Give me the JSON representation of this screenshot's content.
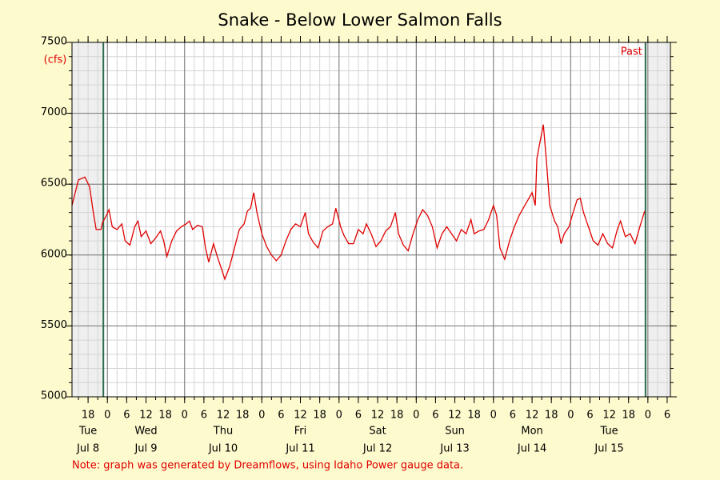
{
  "chart_data": {
    "type": "line",
    "title": "Snake - Below Lower Salmon Falls",
    "y_label": "(cfs)",
    "past_label": "Past",
    "note": "Note: graph was generated by Dreamflows, using Idaho Power gauge data.",
    "past_range": [
      22.75,
      191.25
    ],
    "xlim": [
      13,
      199
    ],
    "ylim": [
      5000,
      7500
    ],
    "yticks": [
      5000,
      5500,
      6000,
      6500,
      7000,
      7500
    ],
    "xticks": [
      18,
      {
        "value": 24,
        "label": "0"
      },
      {
        "value": 30,
        "label": "6"
      },
      {
        "value": 36,
        "label": "12"
      },
      {
        "value": 42,
        "label": "18"
      },
      {
        "value": 48,
        "label": "0"
      },
      {
        "value": 54,
        "label": "6"
      },
      {
        "value": 60,
        "label": "12"
      },
      {
        "value": 66,
        "label": "18"
      },
      {
        "value": 72,
        "label": "0"
      },
      {
        "value": 78,
        "label": "6"
      },
      {
        "value": 84,
        "label": "12"
      },
      {
        "value": 90,
        "label": "18"
      },
      {
        "value": 96,
        "label": "0"
      },
      {
        "value": 102,
        "label": "6"
      },
      {
        "value": 108,
        "label": "12"
      },
      {
        "value": 114,
        "label": "18"
      },
      {
        "value": 120,
        "label": "0"
      },
      {
        "value": 126,
        "label": "6"
      },
      {
        "value": 132,
        "label": "12"
      },
      {
        "value": 138,
        "label": "18"
      },
      {
        "value": 144,
        "label": "0"
      },
      {
        "value": 150,
        "label": "6"
      },
      {
        "value": 156,
        "label": "12"
      },
      {
        "value": 162,
        "label": "18"
      },
      {
        "value": 168,
        "label": "0"
      },
      {
        "value": 174,
        "label": "6"
      },
      {
        "value": 180,
        "label": "12"
      },
      {
        "value": 186,
        "label": "18"
      },
      {
        "value": 192,
        "label": "0"
      },
      {
        "value": 198,
        "label": "6"
      }
    ],
    "day_labels": [
      {
        "value": 18,
        "weekday": "Tue",
        "date": "Jul 8"
      },
      {
        "value": 36,
        "weekday": "Wed",
        "date": "Jul 9"
      },
      {
        "value": 60,
        "weekday": "Thu",
        "date": "Jul 10"
      },
      {
        "value": 84,
        "weekday": "Fri",
        "date": "Jul 11"
      },
      {
        "value": 108,
        "weekday": "Sat",
        "date": "Jul 12"
      },
      {
        "value": 132,
        "weekday": "Sun",
        "date": "Jul 13"
      },
      {
        "value": 156,
        "weekday": "Mon",
        "date": "Jul 14"
      },
      {
        "value": 180,
        "weekday": "Tue",
        "date": "Jul 15"
      }
    ],
    "day_grid": [
      24,
      48,
      72,
      96,
      120,
      144,
      168,
      192
    ],
    "minor_grid": {
      "x_step": 3,
      "y_step": 100
    },
    "grid": true,
    "series": [
      {
        "name": "Flow",
        "color": "#e00000",
        "x": [
          13,
          15,
          17,
          18.5,
          19.5,
          20.5,
          22,
          22.5,
          23.5,
          24.5,
          25.5,
          27,
          28.5,
          29.5,
          31,
          32.5,
          33.5,
          34.5,
          36,
          37.5,
          39,
          40.5,
          41.5,
          42.5,
          44,
          45.5,
          47,
          48.5,
          49.5,
          50.5,
          52,
          53.5,
          54.5,
          55.5,
          57,
          58,
          59.5,
          60.5,
          62,
          63.5,
          65,
          66.5,
          67.5,
          68.5,
          69.5,
          70.5,
          72,
          73.5,
          75,
          76.5,
          78,
          79.5,
          81,
          82.5,
          84,
          85.5,
          86.5,
          88,
          89.5,
          91,
          92.5,
          94,
          95,
          96.5,
          97.5,
          99,
          100.5,
          102,
          103.5,
          104.5,
          106,
          107.5,
          109,
          110.5,
          112,
          113.5,
          114.5,
          116,
          117.5,
          119,
          120.5,
          122,
          123.5,
          125,
          126.5,
          128,
          129.5,
          131,
          132.5,
          134,
          135.5,
          137,
          138,
          139.5,
          141,
          142.5,
          144,
          145,
          146,
          147.5,
          149,
          150.5,
          152,
          153.5,
          155,
          156,
          157,
          157.5,
          158.5,
          159.5,
          160.5,
          161.5,
          163,
          164,
          165,
          166,
          167.5,
          168.5,
          170,
          171,
          172,
          173.5,
          175,
          176.5,
          178,
          179.5,
          181,
          182.5,
          183.5,
          185,
          186.5,
          188,
          189.5,
          191
        ],
        "values": [
          6350,
          6530,
          6550,
          6480,
          6320,
          6180,
          6180,
          6230,
          6270,
          6320,
          6200,
          6180,
          6220,
          6100,
          6070,
          6200,
          6240,
          6130,
          6170,
          6080,
          6120,
          6170,
          6100,
          5990,
          6100,
          6170,
          6200,
          6220,
          6240,
          6180,
          6210,
          6200,
          6050,
          5950,
          6080,
          6000,
          5900,
          5830,
          5920,
          6050,
          6180,
          6220,
          6310,
          6330,
          6440,
          6300,
          6150,
          6060,
          6000,
          5960,
          6000,
          6100,
          6180,
          6220,
          6200,
          6300,
          6150,
          6090,
          6050,
          6170,
          6200,
          6220,
          6330,
          6200,
          6140,
          6080,
          6080,
          6180,
          6150,
          6220,
          6150,
          6060,
          6100,
          6170,
          6200,
          6300,
          6150,
          6070,
          6030,
          6150,
          6250,
          6320,
          6280,
          6200,
          6050,
          6150,
          6200,
          6150,
          6100,
          6180,
          6150,
          6250,
          6150,
          6170,
          6180,
          6250,
          6350,
          6280,
          6050,
          5970,
          6100,
          6200,
          6280,
          6340,
          6400,
          6440,
          6350,
          6680,
          6800,
          6920,
          6650,
          6350,
          6240,
          6200,
          6080,
          6150,
          6200,
          6280,
          6390,
          6400,
          6300,
          6200,
          6100,
          6070,
          6150,
          6080,
          6050,
          6180,
          6240,
          6130,
          6150,
          6080,
          6200,
          6310
        ]
      }
    ]
  }
}
